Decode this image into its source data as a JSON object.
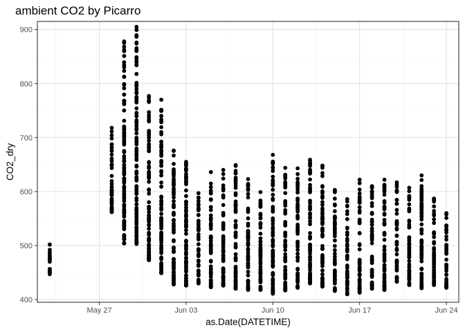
{
  "chart_data": {
    "type": "scatter",
    "title": "ambient CO2 by Picarro",
    "xlabel": "as.Date(DATETIME)",
    "ylabel": "CO2_dry",
    "x_date_range": [
      "2022-05-22",
      "2022-06-25"
    ],
    "ylim": [
      395,
      915
    ],
    "x_ticks": [
      {
        "date": "2022-05-27",
        "label": "May 27"
      },
      {
        "date": "2022-06-03",
        "label": "Jun 03"
      },
      {
        "date": "2022-06-10",
        "label": "Jun 10"
      },
      {
        "date": "2022-06-17",
        "label": "Jun 17"
      },
      {
        "date": "2022-06-24",
        "label": "Jun 24"
      }
    ],
    "y_ticks": [
      400,
      500,
      600,
      700,
      800,
      900
    ],
    "grid": true,
    "theme": "bw",
    "point_color": "#000000",
    "columns": [
      {
        "date": "2022-05-23",
        "min": 447,
        "max": 502
      },
      {
        "date": "2022-05-28",
        "min": 562,
        "max": 718
      },
      {
        "date": "2022-05-29",
        "min": 504,
        "max": 878
      },
      {
        "date": "2022-05-30",
        "min": 503,
        "max": 905
      },
      {
        "date": "2022-05-31",
        "min": 473,
        "max": 777
      },
      {
        "date": "2022-06-01",
        "min": 449,
        "max": 770
      },
      {
        "date": "2022-06-02",
        "min": 428,
        "max": 676
      },
      {
        "date": "2022-06-03",
        "min": 426,
        "max": 655
      },
      {
        "date": "2022-06-04",
        "min": 430,
        "max": 597
      },
      {
        "date": "2022-06-05",
        "min": 423,
        "max": 636
      },
      {
        "date": "2022-06-06",
        "min": 426,
        "max": 640
      },
      {
        "date": "2022-06-07",
        "min": 420,
        "max": 649
      },
      {
        "date": "2022-06-08",
        "min": 418,
        "max": 623
      },
      {
        "date": "2022-06-09",
        "min": 418,
        "max": 599
      },
      {
        "date": "2022-06-10",
        "min": 411,
        "max": 668
      },
      {
        "date": "2022-06-11",
        "min": 417,
        "max": 644
      },
      {
        "date": "2022-06-12",
        "min": 422,
        "max": 643
      },
      {
        "date": "2022-06-13",
        "min": 430,
        "max": 659
      },
      {
        "date": "2022-06-14",
        "min": 424,
        "max": 648
      },
      {
        "date": "2022-06-15",
        "min": 416,
        "max": 603
      },
      {
        "date": "2022-06-16",
        "min": 410,
        "max": 586
      },
      {
        "date": "2022-06-17",
        "min": 413,
        "max": 622
      },
      {
        "date": "2022-06-18",
        "min": 420,
        "max": 610
      },
      {
        "date": "2022-06-19",
        "min": 418,
        "max": 622
      },
      {
        "date": "2022-06-20",
        "min": 433,
        "max": 617
      },
      {
        "date": "2022-06-21",
        "min": 427,
        "max": 607
      },
      {
        "date": "2022-06-22",
        "min": 421,
        "max": 630
      },
      {
        "date": "2022-06-23",
        "min": 427,
        "max": 587
      },
      {
        "date": "2022-06-24",
        "min": 422,
        "max": 560
      }
    ]
  }
}
